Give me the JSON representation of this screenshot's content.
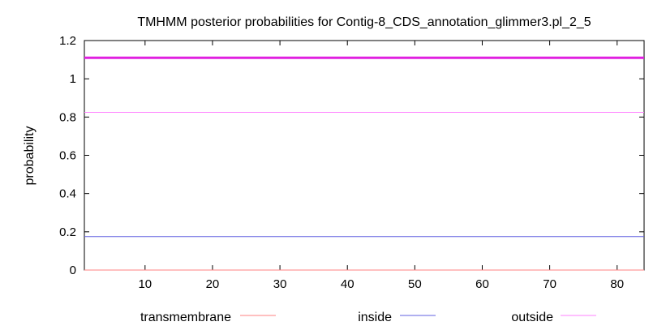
{
  "chart_data": {
    "type": "line",
    "title": "TMHMM posterior probabilities for Contig-8_CDS_annotation_glimmer3.pl_2_5",
    "xlabel": "",
    "ylabel": "probability",
    "xlim": [
      1,
      84
    ],
    "ylim": [
      0,
      1.2
    ],
    "xticks": [
      10,
      20,
      30,
      40,
      50,
      60,
      70,
      80
    ],
    "yticks": [
      0,
      0.2,
      0.4,
      0.6,
      0.8,
      1,
      1.2
    ],
    "ytick_labels": [
      "0",
      "0.2",
      "0.4",
      "0.6",
      "0.8",
      "1",
      "1.2"
    ],
    "grid": false,
    "legend_position": "bottom",
    "series": [
      {
        "name": "transmembrane",
        "color": "#ff8080",
        "x": [
          1,
          84
        ],
        "y": [
          0,
          0
        ]
      },
      {
        "name": "inside",
        "color": "#6060e0",
        "x": [
          1,
          84
        ],
        "y": [
          0.175,
          0.175
        ]
      },
      {
        "name": "outside",
        "color": "#ff80ff",
        "x": [
          1,
          84
        ],
        "y": [
          0.825,
          0.825
        ]
      }
    ],
    "annotation_lines": [
      {
        "color": "#e020e0",
        "y": 1.11,
        "x": [
          1,
          84
        ]
      }
    ]
  }
}
